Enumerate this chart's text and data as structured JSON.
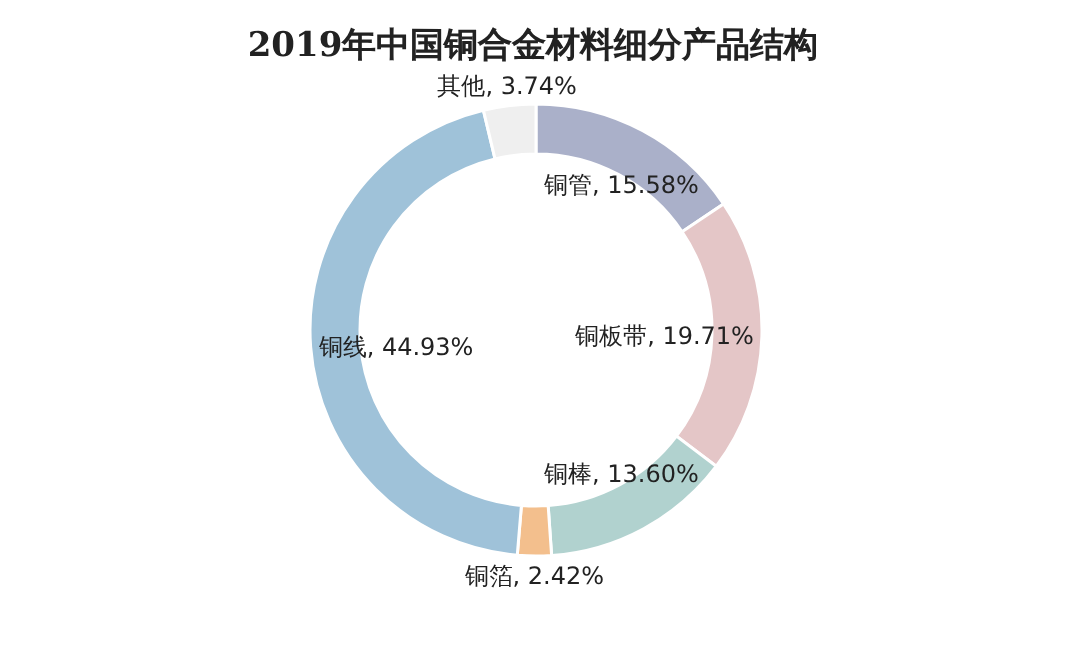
{
  "chart_data": {
    "type": "donut",
    "title": "2019年中国铜合金材料细分产品结构",
    "categories": [
      "铜管",
      "铜板带",
      "铜棒",
      "铜箔",
      "铜线",
      "其他"
    ],
    "values": [
      15.58,
      19.71,
      13.6,
      2.42,
      44.93,
      3.74
    ],
    "value_labels": [
      "15.58%",
      "19.71%",
      "13.60%",
      "2.42%",
      "44.93%",
      "3.74%"
    ],
    "colors": [
      "#aab0c9",
      "#e4c6c7",
      "#b1d2cf",
      "#f3bf8d",
      "#9fc2d9",
      "#efefef"
    ]
  }
}
